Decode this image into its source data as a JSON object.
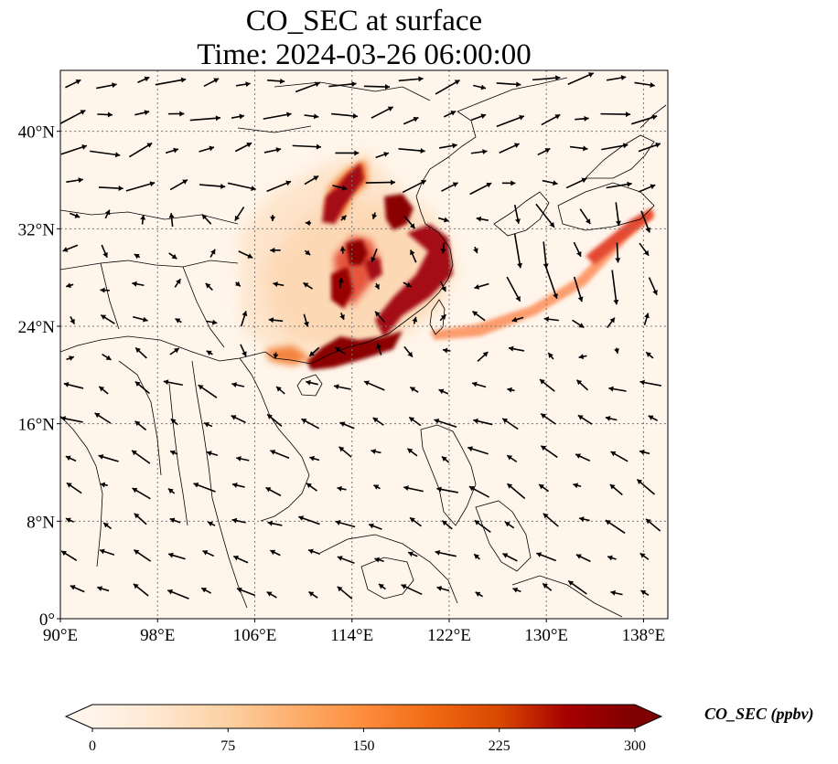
{
  "title": {
    "line1": "CO_SEC at surface",
    "line2": "Time: 2024-03-26 06:00:00"
  },
  "map": {
    "lon_range": [
      90,
      140
    ],
    "lat_range": [
      0,
      45
    ],
    "lon_ticks": [
      {
        "value": 90,
        "label": "90°E"
      },
      {
        "value": 98,
        "label": "98°E"
      },
      {
        "value": 106,
        "label": "106°E"
      },
      {
        "value": 114,
        "label": "114°E"
      },
      {
        "value": 122,
        "label": "122°E"
      },
      {
        "value": 130,
        "label": "130°E"
      },
      {
        "value": 138,
        "label": "138°E"
      }
    ],
    "lat_ticks": [
      {
        "value": 0,
        "label": "0°"
      },
      {
        "value": 8,
        "label": "8°N"
      },
      {
        "value": 16,
        "label": "16°N"
      },
      {
        "value": 24,
        "label": "24°N"
      },
      {
        "value": 32,
        "label": "32°N"
      },
      {
        "value": 40,
        "label": "40°N"
      }
    ],
    "gridlines": true,
    "colors": {
      "background": "#fff5eb",
      "coast": "#000000",
      "grid": "#777777",
      "arrow": "#000000"
    }
  },
  "colorbar": {
    "label": "CO_SEC (ppbv)",
    "min": 0,
    "max": 300,
    "ticks": [
      {
        "value": 0,
        "label": "0"
      },
      {
        "value": 75,
        "label": "75"
      },
      {
        "value": 150,
        "label": "150"
      },
      {
        "value": 225,
        "label": "225"
      },
      {
        "value": 300,
        "label": "300"
      }
    ],
    "colormap": "OrRd",
    "extend": "both",
    "stops": [
      "#fff5eb",
      "#fee6ce",
      "#fdd0a2",
      "#fdae6b",
      "#fd8d3c",
      "#f16913",
      "#d94801",
      "#a60000",
      "#7f0000"
    ]
  }
}
